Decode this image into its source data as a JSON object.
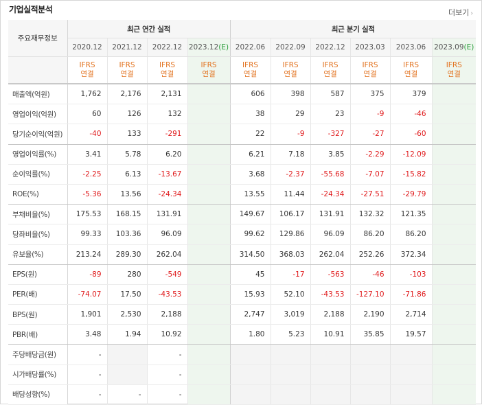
{
  "title": "기업실적분석",
  "more_label": "더보기",
  "header": {
    "row_label": "주요재무정보",
    "annual_group": "최근 연간 실적",
    "quarter_group": "최근 분기 실적",
    "annual_periods": [
      "2020.12",
      "2021.12",
      "2022.12",
      "2023.12"
    ],
    "quarter_periods": [
      "2022.06",
      "2022.09",
      "2022.12",
      "2023.03",
      "2023.06",
      "2023.09"
    ],
    "estimate_mark": "(E)",
    "ifrs": "IFRS",
    "consolidated": "연결"
  },
  "rows": [
    {
      "label": "매출액(억원)",
      "values": [
        "1,762",
        "2,176",
        "2,131",
        "",
        "606",
        "398",
        "587",
        "375",
        "379",
        ""
      ]
    },
    {
      "label": "영업이익(억원)",
      "values": [
        "60",
        "126",
        "132",
        "",
        "38",
        "29",
        "23",
        "-9",
        "-46",
        ""
      ]
    },
    {
      "label": "당기순이익(억원)",
      "values": [
        "-40",
        "133",
        "-291",
        "",
        "22",
        "-9",
        "-327",
        "-27",
        "-60",
        ""
      ]
    },
    {
      "label": "영업이익률(%)",
      "values": [
        "3.41",
        "5.78",
        "6.20",
        "",
        "6.21",
        "7.18",
        "3.85",
        "-2.29",
        "-12.09",
        ""
      ]
    },
    {
      "label": "순이익률(%)",
      "values": [
        "-2.25",
        "6.13",
        "-13.67",
        "",
        "3.68",
        "-2.37",
        "-55.68",
        "-7.07",
        "-15.82",
        ""
      ]
    },
    {
      "label": "ROE(%)",
      "values": [
        "-5.36",
        "13.56",
        "-24.34",
        "",
        "13.55",
        "11.44",
        "-24.34",
        "-27.51",
        "-29.79",
        ""
      ]
    },
    {
      "label": "부채비율(%)",
      "values": [
        "175.53",
        "168.15",
        "131.91",
        "",
        "149.67",
        "106.17",
        "131.91",
        "132.32",
        "121.35",
        ""
      ]
    },
    {
      "label": "당좌비율(%)",
      "values": [
        "99.33",
        "103.36",
        "96.09",
        "",
        "99.62",
        "129.86",
        "96.09",
        "86.20",
        "86.20",
        ""
      ]
    },
    {
      "label": "유보율(%)",
      "values": [
        "213.24",
        "289.30",
        "262.04",
        "",
        "314.50",
        "368.03",
        "262.04",
        "252.26",
        "372.34",
        ""
      ]
    },
    {
      "label": "EPS(원)",
      "values": [
        "-89",
        "280",
        "-549",
        "",
        "45",
        "-17",
        "-563",
        "-46",
        "-103",
        ""
      ]
    },
    {
      "label": "PER(배)",
      "values": [
        "-74.07",
        "17.50",
        "-43.53",
        "",
        "15.93",
        "52.10",
        "-43.53",
        "-127.10",
        "-71.86",
        ""
      ]
    },
    {
      "label": "BPS(원)",
      "values": [
        "1,901",
        "2,530",
        "2,188",
        "",
        "2,747",
        "3,019",
        "2,188",
        "2,190",
        "2,714",
        ""
      ]
    },
    {
      "label": "PBR(배)",
      "values": [
        "3.48",
        "1.94",
        "10.92",
        "",
        "1.80",
        "5.23",
        "10.91",
        "35.85",
        "19.57",
        ""
      ]
    },
    {
      "label": "주당배당금(원)",
      "values": [
        "-",
        "",
        "-",
        "",
        "",
        "",
        "",
        "",
        "",
        ""
      ]
    },
    {
      "label": "시가배당률(%)",
      "values": [
        "-",
        "",
        "-",
        "",
        "",
        "",
        "",
        "",
        "",
        ""
      ]
    },
    {
      "label": "배당성향(%)",
      "values": [
        "-",
        "-",
        "-",
        "",
        "",
        "",
        "",
        "",
        "",
        ""
      ]
    }
  ],
  "colors": {
    "negative": "#e0191b",
    "ifrs": "#e2711d",
    "estimate_bg": "#eef6ee",
    "estimate_mark": "#2a9d3a"
  }
}
